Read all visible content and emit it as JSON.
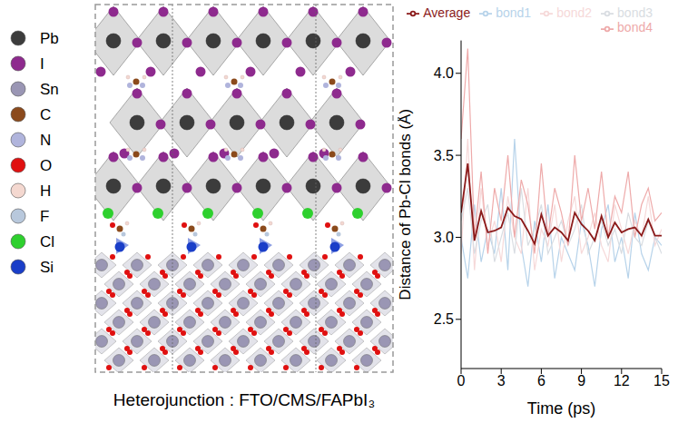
{
  "chart_data": {
    "type": "line",
    "xlabel": "Time (ps)",
    "ylabel": "Distance of Pb-Cl bonds (Å)",
    "x": [
      0,
      0.5,
      1,
      1.5,
      2,
      2.5,
      3,
      3.5,
      4,
      4.5,
      5,
      5.5,
      6,
      6.5,
      7,
      7.5,
      8,
      8.5,
      9,
      9.5,
      10,
      10.5,
      11,
      11.5,
      12,
      12.5,
      13,
      13.5,
      14,
      14.5,
      15
    ],
    "xlim": [
      0,
      15
    ],
    "xticks": [
      0,
      3,
      6,
      9,
      12,
      15
    ],
    "ylim": [
      2.2,
      4.2
    ],
    "yticks": [
      {
        "value": 2.5,
        "label": "2.5"
      },
      {
        "value": 3,
        "label": "3.0"
      },
      {
        "value": 3.5,
        "label": "3.5"
      },
      {
        "value": 4,
        "label": "4.0"
      }
    ],
    "legend": "top",
    "series": [
      {
        "name": "bond1",
        "color": "#b7d3ea",
        "values": [
          3.0,
          2.75,
          3.2,
          2.85,
          3.05,
          2.9,
          3.3,
          2.8,
          3.6,
          2.95,
          2.7,
          3.1,
          2.85,
          3.2,
          2.75,
          3.0,
          2.9,
          2.8,
          3.1,
          2.95,
          2.7,
          3.05,
          3.2,
          2.85,
          3.0,
          2.75,
          3.15,
          2.9,
          2.8,
          3.0,
          2.95
        ]
      },
      {
        "name": "bond2",
        "color": "#f6d9d9",
        "values": [
          2.9,
          3.6,
          2.8,
          3.3,
          2.95,
          3.1,
          2.85,
          3.25,
          3.0,
          2.9,
          3.3,
          2.8,
          3.05,
          2.95,
          3.2,
          2.85,
          3.1,
          3.25,
          2.9,
          3.0,
          3.15,
          2.95,
          2.85,
          3.2,
          3.05,
          2.9,
          3.1,
          3.0,
          3.25,
          2.95,
          3.05
        ]
      },
      {
        "name": "bond3",
        "color": "#d9dde2",
        "values": [
          3.1,
          3.3,
          2.9,
          3.1,
          3.2,
          2.85,
          3.0,
          3.15,
          2.9,
          3.3,
          2.95,
          3.05,
          3.2,
          2.9,
          3.0,
          3.1,
          2.95,
          3.05,
          3.2,
          2.9,
          3.0,
          3.1,
          2.95,
          3.05,
          2.9,
          3.15,
          3.0,
          2.95,
          3.1,
          3.0,
          2.9
        ]
      },
      {
        "name": "bond4",
        "color": "#eeaaaa",
        "values": [
          3.6,
          4.15,
          3.0,
          3.4,
          2.9,
          3.3,
          3.1,
          3.5,
          3.0,
          3.35,
          3.2,
          2.9,
          3.45,
          3.0,
          3.3,
          3.15,
          2.95,
          3.5,
          3.1,
          3.3,
          3.05,
          3.4,
          3.0,
          3.25,
          3.15,
          3.4,
          3.0,
          3.2,
          3.3,
          3.1,
          3.15
        ]
      },
      {
        "name": "Average",
        "color": "#8b1a1a",
        "values": [
          3.15,
          3.45,
          2.98,
          3.16,
          3.03,
          3.04,
          3.06,
          3.18,
          3.13,
          3.11,
          3.04,
          2.96,
          3.14,
          3.01,
          3.06,
          3.03,
          2.98,
          3.15,
          3.08,
          3.04,
          2.98,
          3.13,
          3.0,
          3.09,
          3.03,
          3.05,
          3.06,
          3.01,
          3.11,
          3.01,
          3.01
        ]
      }
    ]
  },
  "diagram": {
    "caption": "Heterojunction : FTO/CMS/FAPbI₃",
    "legend_items": [
      {
        "label": "Pb",
        "color": "#3c3c3c"
      },
      {
        "label": "I",
        "color": "#8e2a8e"
      },
      {
        "label": "Sn",
        "color": "#9a96b4"
      },
      {
        "label": "C",
        "color": "#8b4a1c"
      },
      {
        "label": "N",
        "color": "#b0b4dc"
      },
      {
        "label": "O",
        "color": "#e01010"
      },
      {
        "label": "H",
        "color": "#f4d8d0"
      },
      {
        "label": "F",
        "color": "#b8c8dc"
      },
      {
        "label": "Cl",
        "color": "#2ed02e"
      },
      {
        "label": "Si",
        "color": "#1a3ec8"
      }
    ]
  }
}
